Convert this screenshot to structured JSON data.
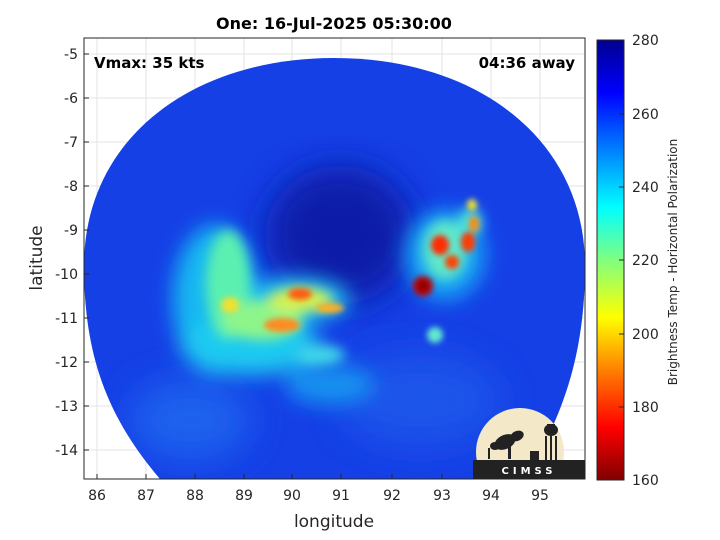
{
  "title": "One: 16-Jul-2025 05:30:00",
  "vmax_label": "Vmax: 35 kts",
  "away_label": "04:36 away",
  "xlabel": "longitude",
  "ylabel": "latitude",
  "colorbar": {
    "label": "Brightness Temp - Horizontal Polarization",
    "range": [
      160,
      280
    ],
    "ticks": [
      "280",
      "260",
      "240",
      "220",
      "200",
      "180",
      "160"
    ],
    "colormap": "jet"
  },
  "x_ticks": [
    "86",
    "87",
    "88",
    "89",
    "90",
    "91",
    "92",
    "93",
    "94",
    "95"
  ],
  "y_ticks": [
    "-5",
    "-6",
    "-7",
    "-8",
    "-9",
    "-10",
    "-11",
    "-12",
    "-13",
    "-14"
  ],
  "logo": {
    "text": "CIMSS",
    "colors": {
      "bg": "#f3e9c9",
      "ink": "#222222"
    }
  },
  "colors": {
    "swath_base": "#1540e6",
    "eye": "#0a1aa8",
    "grid": "#e6e6e6"
  }
}
